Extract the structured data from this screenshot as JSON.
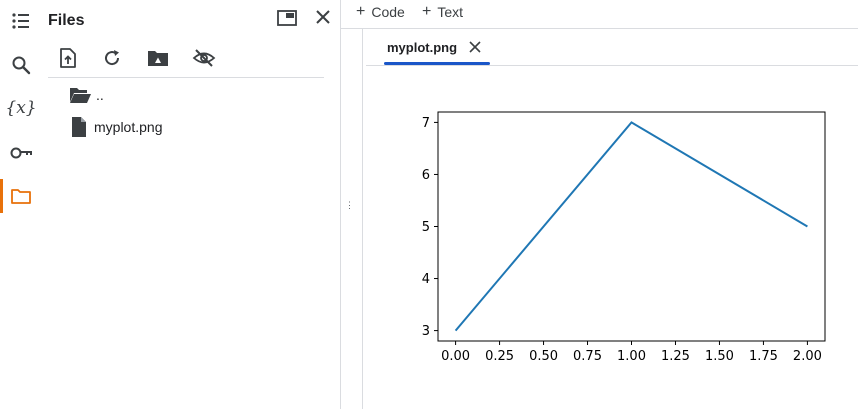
{
  "sidebar": {
    "icons": [
      "table-of-contents-icon",
      "search-icon",
      "variables-icon",
      "key-icon",
      "folder-icon"
    ],
    "variables_glyph": "{x}",
    "active": "folder-icon",
    "accent_color": "#e8710a"
  },
  "files_panel": {
    "title": "Files",
    "items": [
      {
        "label": "..",
        "icon": "folder-open-icon"
      },
      {
        "label": "myplot.png",
        "icon": "file-icon"
      }
    ]
  },
  "toolbar": {
    "add_code_label": "Code",
    "add_text_label": "Text"
  },
  "tab": {
    "label": "myplot.png",
    "underline_color": "#1a56c8"
  },
  "chart_data": {
    "type": "line",
    "x": [
      0.0,
      1.0,
      2.0
    ],
    "y": [
      3,
      7,
      5
    ],
    "xlim": [
      -0.1,
      2.1
    ],
    "ylim": [
      2.8,
      7.2
    ],
    "xticks": [
      0.0,
      0.25,
      0.5,
      0.75,
      1.0,
      1.25,
      1.5,
      1.75,
      2.0
    ],
    "xtick_labels": [
      "0.00",
      "0.25",
      "0.50",
      "0.75",
      "1.00",
      "1.25",
      "1.50",
      "1.75",
      "2.00"
    ],
    "yticks": [
      3,
      4,
      5,
      6,
      7
    ],
    "ytick_labels": [
      "3",
      "4",
      "5",
      "6",
      "7"
    ],
    "line_color": "#1f77b4",
    "grid": false
  }
}
